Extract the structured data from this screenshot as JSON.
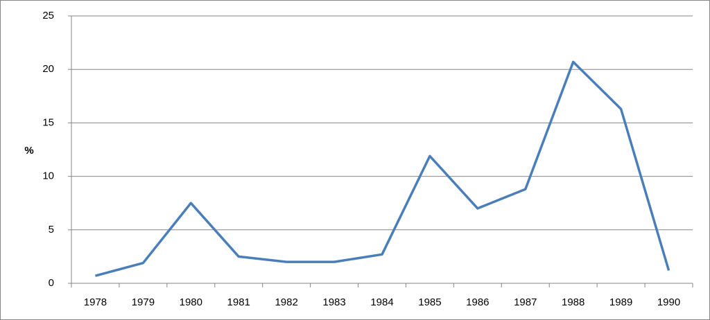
{
  "chart_data": {
    "type": "line",
    "y_label": "%",
    "categories": [
      "1978",
      "1979",
      "1980",
      "1981",
      "1982",
      "1983",
      "1984",
      "1985",
      "1986",
      "1987",
      "1988",
      "1989",
      "1990"
    ],
    "series": [
      {
        "color": "#4a7ebb",
        "values": [
          0.7,
          1.9,
          7.5,
          2.5,
          2.0,
          2.0,
          2.7,
          11.9,
          7.0,
          8.8,
          20.7,
          16.3,
          1.2
        ]
      }
    ],
    "ylim": [
      0,
      25
    ],
    "yticks": [
      0,
      5,
      10,
      15,
      20,
      25
    ],
    "grid": true
  }
}
